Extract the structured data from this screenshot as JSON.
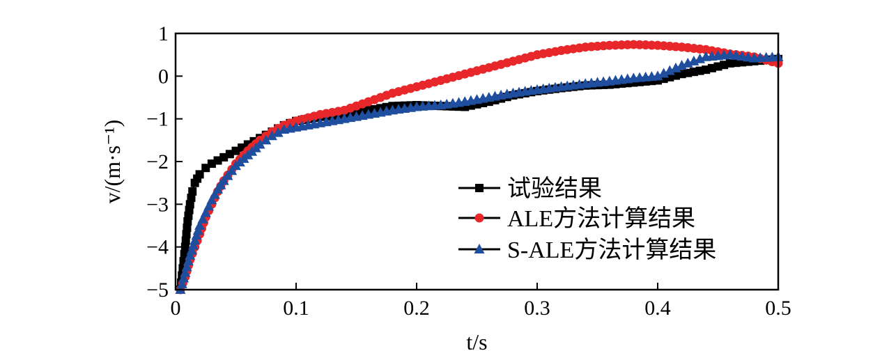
{
  "chart_data": {
    "type": "line",
    "title": "",
    "xlabel": "t/s",
    "ylabel": "v/(m·s⁻¹)",
    "xlim": [
      0,
      0.5
    ],
    "ylim": [
      -5,
      1
    ],
    "x_ticks": [
      "0",
      "0.1",
      "0.2",
      "0.3",
      "0.4",
      "0.5"
    ],
    "y_ticks": [
      "−5",
      "−4",
      "−3",
      "−2",
      "−1",
      "0",
      "1"
    ],
    "grid": false,
    "legend_position": "lower-right",
    "series": [
      {
        "name": "试验结果",
        "color": "#000000",
        "marker": "square",
        "points": [
          [
            0.004,
            -5.0
          ],
          [
            0.006,
            -4.5
          ],
          [
            0.008,
            -4.0
          ],
          [
            0.01,
            -3.4
          ],
          [
            0.012,
            -3.0
          ],
          [
            0.014,
            -2.7
          ],
          [
            0.016,
            -2.5
          ],
          [
            0.02,
            -2.3
          ],
          [
            0.025,
            -2.15
          ],
          [
            0.03,
            -2.05
          ],
          [
            0.04,
            -1.9
          ],
          [
            0.05,
            -1.75
          ],
          [
            0.06,
            -1.6
          ],
          [
            0.07,
            -1.45
          ],
          [
            0.08,
            -1.3
          ],
          [
            0.09,
            -1.15
          ],
          [
            0.1,
            -1.05
          ],
          [
            0.12,
            -0.95
          ],
          [
            0.14,
            -0.9
          ],
          [
            0.16,
            -0.8
          ],
          [
            0.18,
            -0.7
          ],
          [
            0.2,
            -0.68
          ],
          [
            0.22,
            -0.7
          ],
          [
            0.24,
            -0.72
          ],
          [
            0.26,
            -0.6
          ],
          [
            0.28,
            -0.45
          ],
          [
            0.3,
            -0.35
          ],
          [
            0.32,
            -0.28
          ],
          [
            0.34,
            -0.22
          ],
          [
            0.36,
            -0.2
          ],
          [
            0.38,
            -0.15
          ],
          [
            0.4,
            -0.1
          ],
          [
            0.42,
            0.05
          ],
          [
            0.44,
            0.15
          ],
          [
            0.46,
            0.3
          ],
          [
            0.48,
            0.35
          ],
          [
            0.5,
            0.4
          ]
        ]
      },
      {
        "name": "ALE方法计算结果",
        "color": "#e8272a",
        "marker": "circle",
        "points": [
          [
            0.004,
            -5.0
          ],
          [
            0.008,
            -4.7
          ],
          [
            0.012,
            -4.3
          ],
          [
            0.016,
            -4.0
          ],
          [
            0.02,
            -3.7
          ],
          [
            0.025,
            -3.3
          ],
          [
            0.03,
            -3.0
          ],
          [
            0.035,
            -2.7
          ],
          [
            0.04,
            -2.45
          ],
          [
            0.05,
            -2.05
          ],
          [
            0.06,
            -1.75
          ],
          [
            0.07,
            -1.5
          ],
          [
            0.08,
            -1.3
          ],
          [
            0.09,
            -1.15
          ],
          [
            0.1,
            -1.05
          ],
          [
            0.12,
            -0.9
          ],
          [
            0.14,
            -0.8
          ],
          [
            0.16,
            -0.6
          ],
          [
            0.18,
            -0.4
          ],
          [
            0.2,
            -0.25
          ],
          [
            0.22,
            -0.1
          ],
          [
            0.24,
            0.05
          ],
          [
            0.26,
            0.2
          ],
          [
            0.28,
            0.35
          ],
          [
            0.3,
            0.5
          ],
          [
            0.32,
            0.6
          ],
          [
            0.34,
            0.68
          ],
          [
            0.36,
            0.72
          ],
          [
            0.38,
            0.74
          ],
          [
            0.4,
            0.72
          ],
          [
            0.42,
            0.68
          ],
          [
            0.44,
            0.62
          ],
          [
            0.46,
            0.52
          ],
          [
            0.48,
            0.45
          ],
          [
            0.5,
            0.3
          ]
        ]
      },
      {
        "name": "S-ALE方法计算结果",
        "color": "#1f4e9e",
        "marker": "triangle",
        "points": [
          [
            0.004,
            -5.0
          ],
          [
            0.008,
            -4.6
          ],
          [
            0.012,
            -4.2
          ],
          [
            0.016,
            -3.85
          ],
          [
            0.02,
            -3.5
          ],
          [
            0.025,
            -3.2
          ],
          [
            0.03,
            -2.9
          ],
          [
            0.035,
            -2.65
          ],
          [
            0.04,
            -2.45
          ],
          [
            0.05,
            -2.1
          ],
          [
            0.06,
            -1.85
          ],
          [
            0.07,
            -1.6
          ],
          [
            0.08,
            -1.4
          ],
          [
            0.09,
            -1.25
          ],
          [
            0.1,
            -1.2
          ],
          [
            0.12,
            -1.1
          ],
          [
            0.14,
            -1.0
          ],
          [
            0.16,
            -0.9
          ],
          [
            0.18,
            -0.8
          ],
          [
            0.2,
            -0.72
          ],
          [
            0.22,
            -0.68
          ],
          [
            0.24,
            -0.6
          ],
          [
            0.26,
            -0.5
          ],
          [
            0.28,
            -0.4
          ],
          [
            0.3,
            -0.32
          ],
          [
            0.32,
            -0.25
          ],
          [
            0.34,
            -0.18
          ],
          [
            0.36,
            -0.12
          ],
          [
            0.38,
            -0.05
          ],
          [
            0.4,
            0.0
          ],
          [
            0.42,
            0.25
          ],
          [
            0.44,
            0.45
          ],
          [
            0.46,
            0.5
          ],
          [
            0.48,
            0.42
          ],
          [
            0.5,
            0.45
          ]
        ]
      }
    ]
  }
}
